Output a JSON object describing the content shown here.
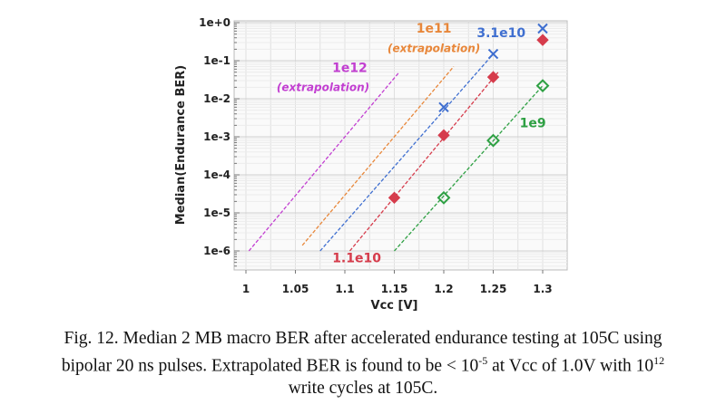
{
  "chart_data": {
    "type": "scatter",
    "xlabel": "Vcc [V]",
    "ylabel": "Median(Endurance BER)",
    "xlim": [
      0.988,
      1.325
    ],
    "ylim": [
      3e-07,
      1.1
    ],
    "yscale": "log",
    "grid": true,
    "xticks": [
      "1",
      "1.05",
      "1.1",
      "1.15",
      "1.2",
      "1.25",
      "1.3"
    ],
    "xtick_values": [
      1,
      1.05,
      1.1,
      1.15,
      1.2,
      1.25,
      1.3
    ],
    "yticks": [
      "1e+0",
      "1e-1",
      "1e-2",
      "1e-3",
      "1e-4",
      "1e-5",
      "1e-6"
    ],
    "ytick_values": [
      1,
      0.1,
      0.01,
      0.001,
      0.0001,
      1e-05,
      1e-06
    ],
    "series": [
      {
        "name": "3.1e10",
        "color": "#3f6fd0",
        "marker": "x",
        "points": [
          [
            1.2,
            0.006
          ],
          [
            1.25,
            0.15
          ],
          [
            1.3,
            0.7
          ]
        ],
        "fit_line": [
          [
            1.075,
            1e-06
          ],
          [
            1.25,
            0.15
          ]
        ]
      },
      {
        "name": "1.1e10",
        "color": "#d63c4c",
        "marker": "diamond-filled",
        "points": [
          [
            1.15,
            2.5e-05
          ],
          [
            1.2,
            0.0011
          ],
          [
            1.25,
            0.037
          ],
          [
            1.3,
            0.35
          ]
        ],
        "fit_line": [
          [
            1.105,
            1e-06
          ],
          [
            1.255,
            0.05
          ]
        ]
      },
      {
        "name": "1e9",
        "color": "#2ea043",
        "marker": "diamond-open",
        "points": [
          [
            1.2,
            2.5e-05
          ],
          [
            1.25,
            0.0008
          ],
          [
            1.3,
            0.022
          ]
        ],
        "fit_line": [
          [
            1.15,
            1e-06
          ],
          [
            1.3,
            0.022
          ]
        ]
      },
      {
        "name": "1e11",
        "color": "#e8873a",
        "marker": "none",
        "points": [],
        "fit_line": [
          [
            1.057,
            1.4e-06
          ],
          [
            1.21,
            0.07
          ]
        ]
      },
      {
        "name": "1e12",
        "color": "#c23fd1",
        "marker": "none",
        "points": [],
        "fit_line": [
          [
            1.003,
            1e-06
          ],
          [
            1.155,
            0.05
          ]
        ]
      }
    ],
    "annotations": [
      {
        "text": "1e11",
        "color": "#e8873a",
        "italic": false,
        "at": [
          1.19,
          0.55
        ]
      },
      {
        "text": "(extrapolation)",
        "color": "#e8873a",
        "italic": true,
        "at": [
          1.19,
          0.17
        ]
      },
      {
        "text": "3.1e10",
        "color": "#3f6fd0",
        "italic": false,
        "at": [
          1.258,
          0.42
        ]
      },
      {
        "text": "1e12",
        "color": "#c23fd1",
        "italic": false,
        "at": [
          1.105,
          0.05
        ]
      },
      {
        "text": "(extrapolation)",
        "color": "#c23fd1",
        "italic": true,
        "at": [
          1.078,
          0.016
        ]
      },
      {
        "text": "1e9",
        "color": "#2ea043",
        "italic": false,
        "at": [
          1.29,
          0.0018
        ]
      },
      {
        "text": "1.1e10",
        "color": "#d63c4c",
        "italic": false,
        "at": [
          1.112,
          5e-07
        ]
      }
    ]
  },
  "caption": {
    "line1": "Fig. 12. Median 2 MB macro BER after accelerated endurance testing at 105C using",
    "line2a": "bipolar 20 ns pulses. Extrapolated BER is found to be < 10",
    "line2_sup1": "-5",
    "line2b": " at Vcc of 1.0V with 10",
    "line2_sup2": "12",
    "line3": "write cycles at 105C."
  }
}
